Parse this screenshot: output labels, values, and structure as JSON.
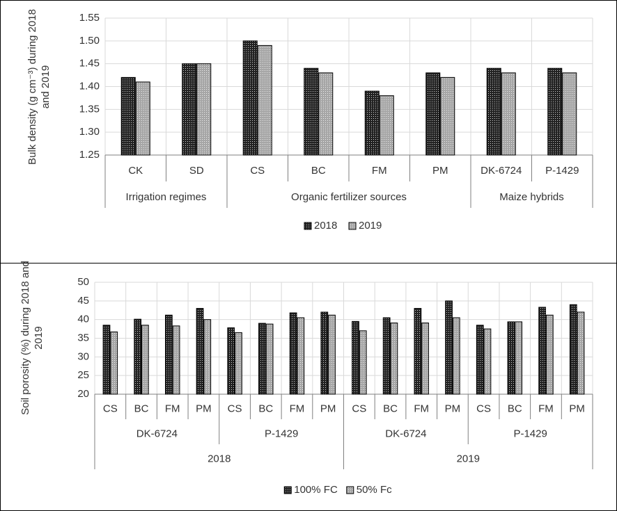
{
  "chart_data": [
    {
      "type": "bar",
      "y_label": "Bulk density (g cm⁻³) during 2018 and 2019",
      "groups": [
        {
          "name": "Irrigation regimes",
          "categories": [
            "CK",
            "SD"
          ]
        },
        {
          "name": "Organic fertilizer sources",
          "categories": [
            "CS",
            "BC",
            "FM",
            "PM"
          ]
        },
        {
          "name": "Maize hybrids",
          "categories": [
            "DK-6724",
            "P-1429"
          ]
        }
      ],
      "series": [
        {
          "name": "2018",
          "color": "#222222",
          "values": [
            1.42,
            1.45,
            1.5,
            1.44,
            1.39,
            1.43,
            1.44,
            1.44
          ]
        },
        {
          "name": "2019",
          "color": "#a6a6a6",
          "values": [
            1.41,
            1.45,
            1.49,
            1.43,
            1.38,
            1.42,
            1.43,
            1.43
          ]
        }
      ],
      "ylim": [
        1.25,
        1.55
      ],
      "yticks": [
        1.25,
        {
          "value": 1.3,
          "label": "1.30"
        },
        1.35,
        {
          "value": 1.4,
          "label": "1.40"
        },
        1.45,
        {
          "value": 1.5,
          "label": "1.50"
        },
        1.55
      ],
      "grid": true,
      "legend": "bottom"
    },
    {
      "type": "bar",
      "y_label": "Soil porosity (%) during 2018 and 2019",
      "groups": [
        {
          "name": "2018",
          "groups": [
            {
              "name": "DK-6724",
              "categories": [
                "CS",
                "BC",
                "FM",
                "PM"
              ]
            },
            {
              "name": "P-1429",
              "categories": [
                "CS",
                "BC",
                "FM",
                "PM"
              ]
            }
          ]
        },
        {
          "name": "2019",
          "groups": [
            {
              "name": "DK-6724",
              "categories": [
                "CS",
                "BC",
                "FM",
                "PM"
              ]
            },
            {
              "name": "P-1429",
              "categories": [
                "CS",
                "BC",
                "FM",
                "PM"
              ]
            }
          ]
        }
      ],
      "series": [
        {
          "name": "100% FC",
          "color": "#222222",
          "values": [
            38.5,
            40.1,
            41.2,
            43.0,
            37.8,
            39.0,
            41.8,
            42.0,
            39.5,
            40.5,
            43.0,
            45.0,
            38.5,
            39.4,
            43.3,
            44.0
          ]
        },
        {
          "name": "50% Fc",
          "color": "#a6a6a6",
          "values": [
            36.7,
            38.5,
            38.3,
            40.0,
            36.5,
            38.8,
            40.5,
            41.2,
            37.0,
            39.1,
            39.1,
            40.5,
            37.5,
            39.4,
            41.2,
            42.0
          ]
        }
      ],
      "ylim": [
        20,
        50
      ],
      "yticks": [
        20,
        25,
        30,
        35,
        40,
        45,
        50
      ],
      "grid": true,
      "legend": "bottom"
    }
  ]
}
